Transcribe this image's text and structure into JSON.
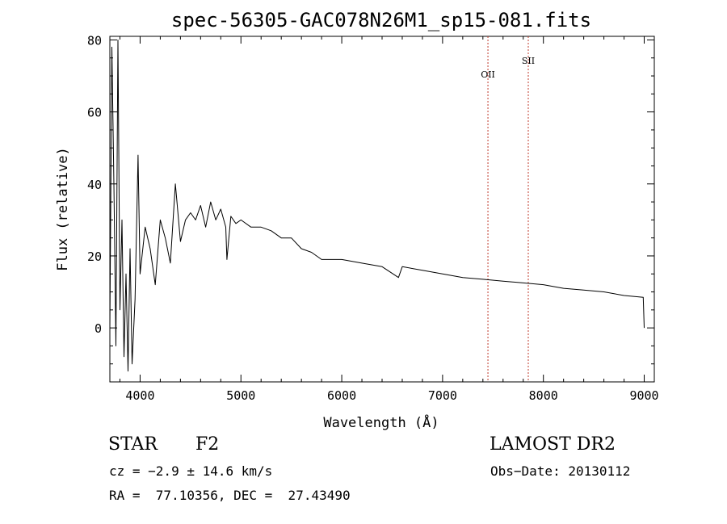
{
  "chart_data": {
    "type": "line",
    "title": "spec-56305-GAC078N26M1_sp15-081.fits",
    "xlabel": "Wavelength (Å)",
    "ylabel": "Flux (relative)",
    "xlim": [
      3700,
      9100
    ],
    "ylim": [
      -15,
      81
    ],
    "xticks": [
      4000,
      5000,
      6000,
      7000,
      8000,
      9000
    ],
    "yticks": [
      0,
      20,
      40,
      60,
      80
    ],
    "grid": false,
    "series": [
      {
        "x": [
          3700,
          3720,
          3740,
          3760,
          3780,
          3800,
          3820,
          3840,
          3860,
          3880,
          3900,
          3920,
          3950,
          3980,
          4000,
          4050,
          4100,
          4150,
          4200,
          4250,
          4300,
          4350,
          4400,
          4450,
          4500,
          4550,
          4600,
          4650,
          4700,
          4750,
          4800,
          4850,
          4861,
          4900,
          4950,
          5000,
          5100,
          5200,
          5300,
          5400,
          5500,
          5600,
          5700,
          5800,
          5900,
          6000,
          6200,
          6400,
          6563,
          6600,
          6800,
          7000,
          7200,
          7400,
          7600,
          7800,
          8000,
          8200,
          8400,
          8600,
          8800,
          8990,
          9000
        ],
        "y": [
          0,
          78,
          40,
          -5,
          80,
          5,
          30,
          -8,
          15,
          -12,
          22,
          -10,
          8,
          48,
          15,
          28,
          22,
          12,
          30,
          25,
          18,
          40,
          24,
          30,
          32,
          30,
          34,
          28,
          35,
          30,
          33,
          28,
          19,
          31,
          29,
          30,
          28,
          28,
          27,
          25,
          25,
          22,
          21,
          19,
          19,
          19,
          18,
          17,
          14,
          17,
          16,
          15,
          14,
          13.5,
          13,
          12.5,
          12,
          11,
          10.5,
          10,
          9,
          8.5,
          0
        ]
      }
    ],
    "reference_lines": [
      {
        "label": "OII",
        "x": 7450,
        "color": "#c0392b"
      },
      {
        "label": "SII",
        "x": 7850,
        "color": "#c0392b"
      }
    ]
  },
  "info": {
    "object_class": "STAR",
    "subclass": "F2",
    "survey": "LAMOST DR2",
    "cz": "cz = −2.9 ± 14.6 km/s",
    "obs_date": "Obs−Date: 20130112",
    "coords": "RA =  77.10356, DEC =  27.43490"
  }
}
